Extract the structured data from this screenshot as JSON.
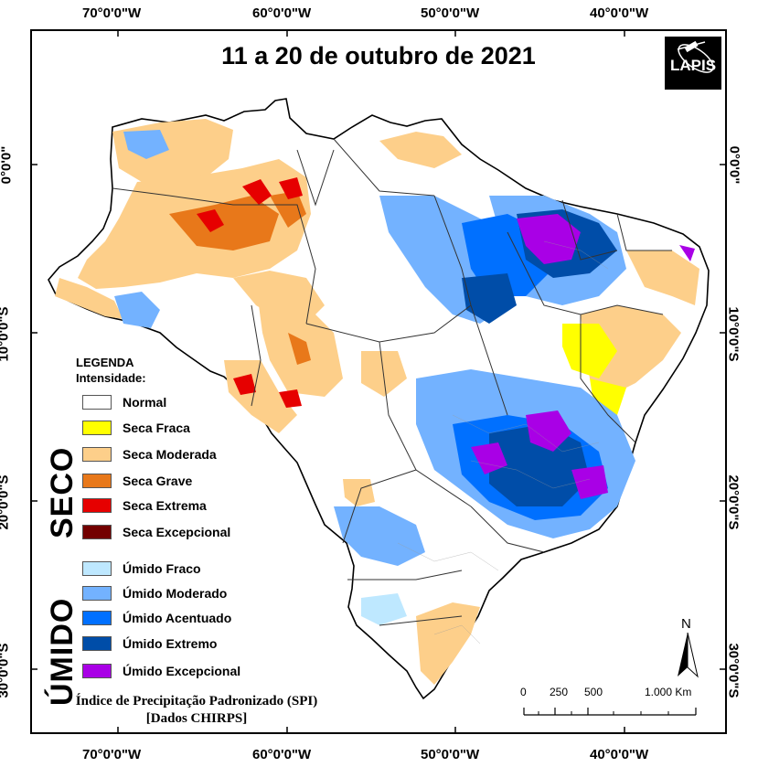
{
  "title": "11 a 20 de outubro de 2021",
  "logo_text": "LAPIS",
  "graticule": {
    "top_lon": [
      "70°0'0\"W",
      "60°0'0\"W",
      "50°0'0\"W",
      "40°0'0\"W"
    ],
    "bottom_lon": [
      "70°0'0\"W",
      "60°0'0\"W",
      "50°0'0\"W",
      "40°0'0\"W"
    ],
    "left_lat": [
      "0°0'0\"",
      "10°0'0\"S",
      "20°0'0\"S",
      "30°0'0\"S"
    ],
    "right_lat": [
      "0°0'0\"",
      "10°0'0\"S",
      "20°0'0\"S",
      "30°0'0\"S"
    ]
  },
  "legend": {
    "heading": "LEGENDA",
    "subheading": "Intensidade:",
    "dry_group_label": "SECO",
    "wet_group_label": "ÚMIDO",
    "items": [
      {
        "label": "Normal",
        "color": "#ffffff"
      },
      {
        "label": "Seca Fraca",
        "color": "#ffff00"
      },
      {
        "label": "Seca Moderada",
        "color": "#fdcf8a"
      },
      {
        "label": "Seca Grave",
        "color": "#e8781a"
      },
      {
        "label": "Seca Extrema",
        "color": "#e60000"
      },
      {
        "label": "Seca Excepcional",
        "color": "#730000"
      },
      {
        "label": "Úmido Fraco",
        "color": "#bee8ff"
      },
      {
        "label": "Úmido Moderado",
        "color": "#73b2ff"
      },
      {
        "label": "Úmido Acentuado",
        "color": "#0070ff"
      },
      {
        "label": "Úmido Extremo",
        "color": "#004da8"
      },
      {
        "label": "Úmido Excepcional",
        "color": "#a900e6"
      }
    ]
  },
  "caption": {
    "line1": "Índice de Precipitação Padronizado (SPI)",
    "line2": "[Dados CHIRPS]"
  },
  "north_arrow": {
    "label": "N"
  },
  "scale_bar": {
    "labels": [
      "0",
      "250",
      "500",
      "1.000 Km"
    ]
  }
}
